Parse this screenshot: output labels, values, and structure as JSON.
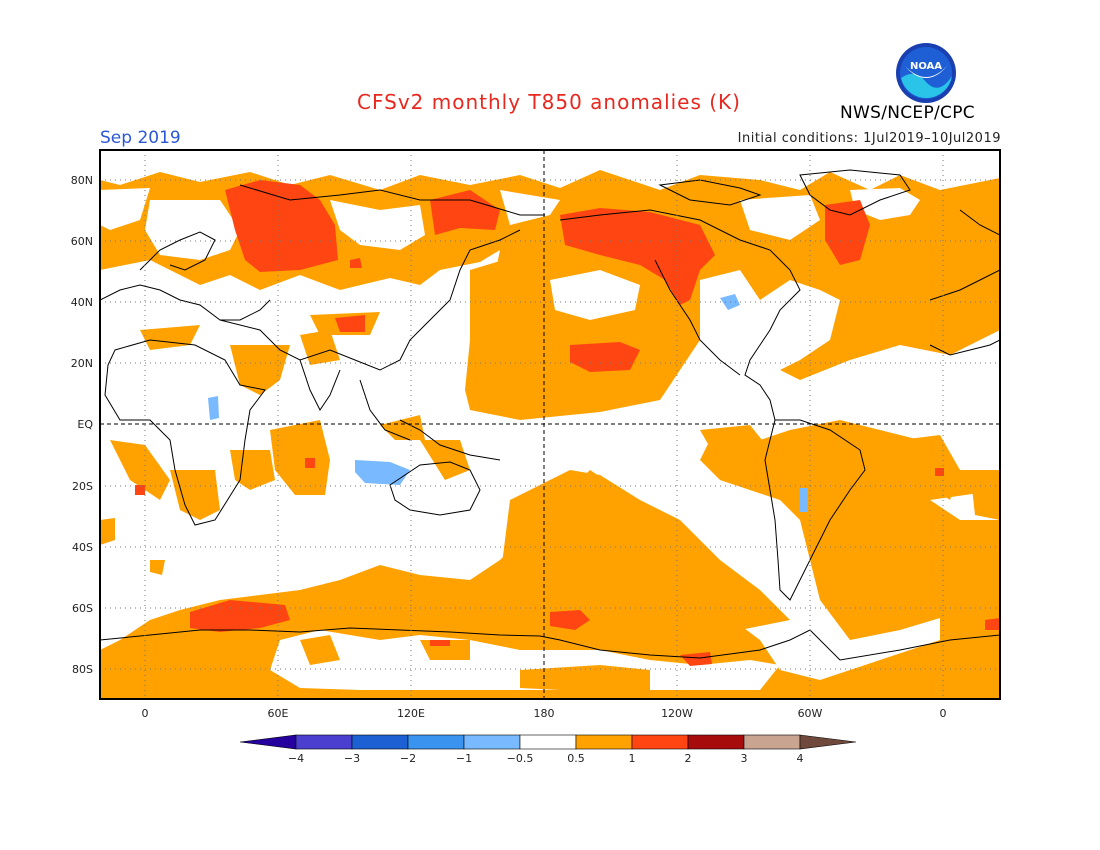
{
  "title": "CFSv2 monthly T850 anomalies (K)",
  "month_label": "Sep 2019",
  "initial_conditions": "Initial conditions: 1Jul2019–10Jul2019",
  "agency": "NWS/NCEP/CPC",
  "logo_text": "NOAA",
  "map": {
    "lat_labels": [
      "80N",
      "60N",
      "40N",
      "20N",
      "EQ",
      "20S",
      "40S",
      "60S",
      "80S"
    ],
    "lon_labels": [
      "0",
      "60E",
      "120E",
      "180",
      "120W",
      "60W",
      "0"
    ],
    "colors": {
      "ocean_neutral": "#ffffff",
      "anomaly_0_5_to_1": "#ffa200",
      "anomaly_1_to_2": "#ff4612",
      "anomaly_neg": "#79b9ff"
    }
  },
  "legend": {
    "tick_labels": [
      "−4",
      "−3",
      "−2",
      "−1",
      "−0.5",
      "0.5",
      "1",
      "2",
      "3",
      "4"
    ],
    "colors": [
      "#26009e",
      "#4b3fcf",
      "#1d60d4",
      "#3a93ee",
      "#79b9ff",
      "#ffffff",
      "#ffa200",
      "#ff4612",
      "#a70c0c",
      "#c8a491",
      "#6f4a3c"
    ]
  }
}
